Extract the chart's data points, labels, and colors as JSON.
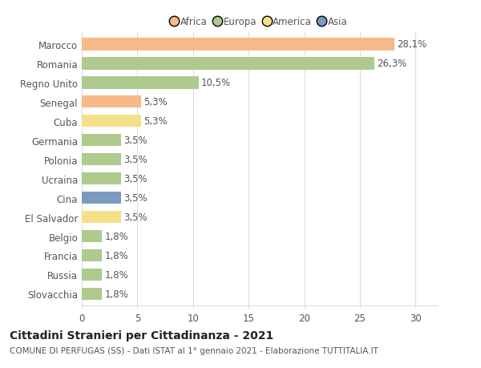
{
  "categories": [
    "Marocco",
    "Romania",
    "Regno Unito",
    "Senegal",
    "Cuba",
    "Germania",
    "Polonia",
    "Ucraina",
    "Cina",
    "El Salvador",
    "Belgio",
    "Francia",
    "Russia",
    "Slovacchia"
  ],
  "values": [
    28.1,
    26.3,
    10.5,
    5.3,
    5.3,
    3.5,
    3.5,
    3.5,
    3.5,
    3.5,
    1.8,
    1.8,
    1.8,
    1.8
  ],
  "labels": [
    "28,1%",
    "26,3%",
    "10,5%",
    "5,3%",
    "5,3%",
    "3,5%",
    "3,5%",
    "3,5%",
    "3,5%",
    "3,5%",
    "1,8%",
    "1,8%",
    "1,8%",
    "1,8%"
  ],
  "colors": [
    "#F5B98A",
    "#AECA8E",
    "#AECA8E",
    "#F5B98A",
    "#F5E08A",
    "#AECA8E",
    "#AECA8E",
    "#AECA8E",
    "#7A9BBF",
    "#F5E08A",
    "#AECA8E",
    "#AECA8E",
    "#AECA8E",
    "#AECA8E"
  ],
  "continent_colors": {
    "Africa": "#F5B98A",
    "Europa": "#AECA8E",
    "America": "#F5E08A",
    "Asia": "#7A9BBF"
  },
  "legend_order": [
    "Africa",
    "Europa",
    "America",
    "Asia"
  ],
  "title": "Cittadini Stranieri per Cittadinanza - 2021",
  "subtitle": "COMUNE DI PERFUGAS (SS) - Dati ISTAT al 1° gennaio 2021 - Elaborazione TUTTITALIA.IT",
  "xlim": [
    0,
    32
  ],
  "xticks": [
    0,
    5,
    10,
    15,
    20,
    25,
    30
  ],
  "background_color": "#ffffff",
  "grid_color": "#dddddd",
  "bar_height": 0.65,
  "label_fontsize": 8.5,
  "tick_fontsize": 8.5,
  "title_fontsize": 10,
  "subtitle_fontsize": 7.5
}
